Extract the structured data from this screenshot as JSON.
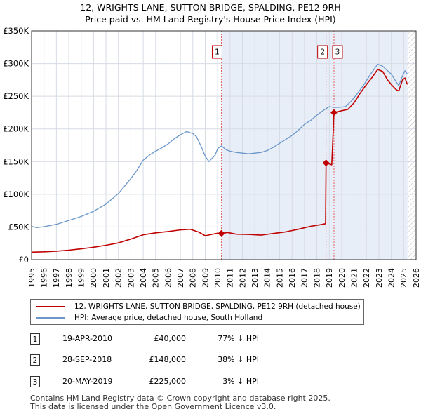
{
  "chart_data": {
    "type": "line",
    "title": "12, WRIGHTS LANE, SUTTON BRIDGE, SPALDING, PE12 9RH",
    "subtitle": "Price paid vs. HM Land Registry's House Price Index (HPI)",
    "xlim": [
      1995,
      2026
    ],
    "ylim": [
      0,
      350000
    ],
    "x_ticks": [
      "1995",
      "1996",
      "1997",
      "1998",
      "1999",
      "2000",
      "2001",
      "2002",
      "2003",
      "2004",
      "2005",
      "2006",
      "2007",
      "2008",
      "2009",
      "2010",
      "2011",
      "2012",
      "2013",
      "2014",
      "2015",
      "2016",
      "2017",
      "2018",
      "2019",
      "2020",
      "2021",
      "2022",
      "2023",
      "2024",
      "2025",
      "2026"
    ],
    "y_ticks": [
      {
        "value": 0,
        "label": "£0"
      },
      {
        "value": 50000,
        "label": "£50K"
      },
      {
        "value": 100000,
        "label": "£100K"
      },
      {
        "value": 150000,
        "label": "£150K"
      },
      {
        "value": 200000,
        "label": "£200K"
      },
      {
        "value": 250000,
        "label": "£250K"
      },
      {
        "value": 300000,
        "label": "£300K"
      },
      {
        "value": 350000,
        "label": "£350K"
      }
    ],
    "grid": true,
    "colors": {
      "property": "#c00000",
      "hpi": "#6a96c8",
      "shade": "#e8eef8",
      "vline": "#e06060"
    },
    "series": [
      {
        "name": "12, WRIGHTS LANE, SUTTON BRIDGE, SPALDING, PE12 9RH (detached house)",
        "values": [
          [
            1995.0,
            11500
          ],
          [
            1996.0,
            12000
          ],
          [
            1997.0,
            13000
          ],
          [
            1998.0,
            14500
          ],
          [
            1999.0,
            16500
          ],
          [
            2000.0,
            19000
          ],
          [
            2001.0,
            22000
          ],
          [
            2002.0,
            25500
          ],
          [
            2003.0,
            31500
          ],
          [
            2004.0,
            38000
          ],
          [
            2005.0,
            41000
          ],
          [
            2006.0,
            43000
          ],
          [
            2007.0,
            45500
          ],
          [
            2007.8,
            46500
          ],
          [
            2008.5,
            42000
          ],
          [
            2009.0,
            36500
          ],
          [
            2009.5,
            38500
          ],
          [
            2010.0,
            40500
          ],
          [
            2010.3,
            40000
          ],
          [
            2010.8,
            41500
          ],
          [
            2011.5,
            39000
          ],
          [
            2012.5,
            38500
          ],
          [
            2013.5,
            37500
          ],
          [
            2014.5,
            40000
          ],
          [
            2015.5,
            42500
          ],
          [
            2016.5,
            46500
          ],
          [
            2017.5,
            51000
          ],
          [
            2018.3,
            53500
          ],
          [
            2018.7,
            55000
          ],
          [
            2018.74,
            148000
          ],
          [
            2019.2,
            145000
          ],
          [
            2019.38,
            225000
          ],
          [
            2019.8,
            227000
          ],
          [
            2020.5,
            230000
          ],
          [
            2021.0,
            240000
          ],
          [
            2021.5,
            255000
          ],
          [
            2022.0,
            268000
          ],
          [
            2022.5,
            280000
          ],
          [
            2022.9,
            291000
          ],
          [
            2023.3,
            288000
          ],
          [
            2023.7,
            275000
          ],
          [
            2024.0,
            268000
          ],
          [
            2024.4,
            260000
          ],
          [
            2024.6,
            258000
          ],
          [
            2024.9,
            275000
          ],
          [
            2025.1,
            278000
          ],
          [
            2025.3,
            268000
          ]
        ]
      },
      {
        "name": "HPI: Average price, detached house, South Holland",
        "values": [
          [
            1995.0,
            51000
          ],
          [
            1995.4,
            49000
          ],
          [
            1996.0,
            50500
          ],
          [
            1997.0,
            54000
          ],
          [
            1998.0,
            60000
          ],
          [
            1999.0,
            66000
          ],
          [
            2000.0,
            74000
          ],
          [
            2001.0,
            85000
          ],
          [
            2002.0,
            101000
          ],
          [
            2003.0,
            124000
          ],
          [
            2003.5,
            137000
          ],
          [
            2004.0,
            152000
          ],
          [
            2004.5,
            160000
          ],
          [
            2005.0,
            166000
          ],
          [
            2005.5,
            171000
          ],
          [
            2006.0,
            177000
          ],
          [
            2006.5,
            185000
          ],
          [
            2007.0,
            191000
          ],
          [
            2007.5,
            196000
          ],
          [
            2008.0,
            193000
          ],
          [
            2008.3,
            188000
          ],
          [
            2008.7,
            172000
          ],
          [
            2009.0,
            158000
          ],
          [
            2009.3,
            150000
          ],
          [
            2009.8,
            160000
          ],
          [
            2010.0,
            170000
          ],
          [
            2010.3,
            174000
          ],
          [
            2010.7,
            168000
          ],
          [
            2011.0,
            166000
          ],
          [
            2011.5,
            164000
          ],
          [
            2012.0,
            163000
          ],
          [
            2012.5,
            162000
          ],
          [
            2013.0,
            163000
          ],
          [
            2013.5,
            164000
          ],
          [
            2014.0,
            167000
          ],
          [
            2014.5,
            172000
          ],
          [
            2015.0,
            178000
          ],
          [
            2015.5,
            184000
          ],
          [
            2016.0,
            190000
          ],
          [
            2016.5,
            198000
          ],
          [
            2017.0,
            207000
          ],
          [
            2017.5,
            213000
          ],
          [
            2018.0,
            221000
          ],
          [
            2018.5,
            228000
          ],
          [
            2018.74,
            231000
          ],
          [
            2019.0,
            234000
          ],
          [
            2019.38,
            233000
          ],
          [
            2019.8,
            233000
          ],
          [
            2020.3,
            234000
          ],
          [
            2020.8,
            243000
          ],
          [
            2021.3,
            255000
          ],
          [
            2021.8,
            268000
          ],
          [
            2022.3,
            283000
          ],
          [
            2022.9,
            299000
          ],
          [
            2023.3,
            296000
          ],
          [
            2023.7,
            289000
          ],
          [
            2024.0,
            284000
          ],
          [
            2024.4,
            272000
          ],
          [
            2024.6,
            266000
          ],
          [
            2024.9,
            281000
          ],
          [
            2025.1,
            289000
          ],
          [
            2025.3,
            284000
          ]
        ]
      }
    ],
    "markers": [
      {
        "label": "1",
        "x": 2010.3,
        "y": 40000
      },
      {
        "label": "2",
        "x": 2018.74,
        "y": 148000
      },
      {
        "label": "3",
        "x": 2019.38,
        "y": 225000
      }
    ],
    "shaded_range": [
      2010.3,
      2025.3
    ]
  },
  "legend": {
    "property_label": "12, WRIGHTS LANE, SUTTON BRIDGE, SPALDING, PE12 9RH (detached house)",
    "hpi_label": "HPI: Average price, detached house, South Holland"
  },
  "transactions": [
    {
      "num": "1",
      "date": "19-APR-2010",
      "price": "£40,000",
      "hpi": "77% ↓ HPI"
    },
    {
      "num": "2",
      "date": "28-SEP-2018",
      "price": "£148,000",
      "hpi": "38% ↓ HPI"
    },
    {
      "num": "3",
      "date": "20-MAY-2019",
      "price": "£225,000",
      "hpi": "3% ↓ HPI"
    }
  ],
  "footer": {
    "line1": "Contains HM Land Registry data © Crown copyright and database right 2025.",
    "line2": "This data is licensed under the Open Government Licence v3.0."
  }
}
